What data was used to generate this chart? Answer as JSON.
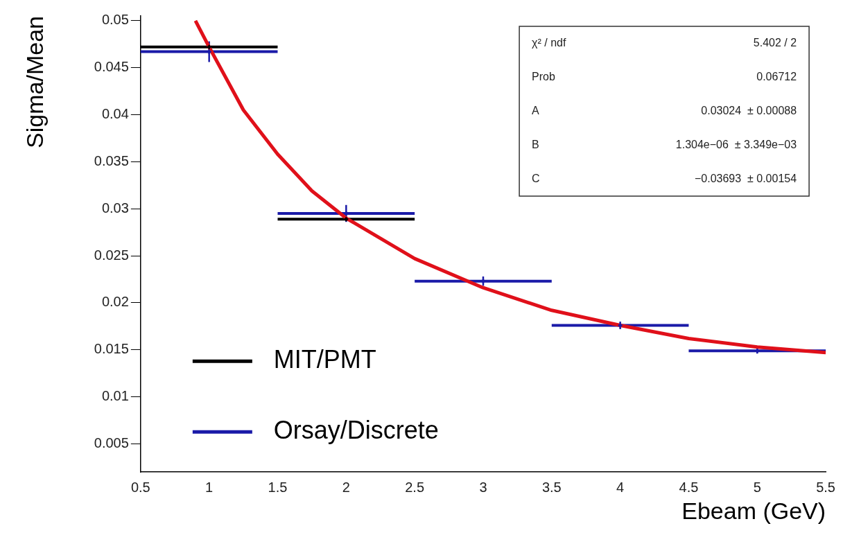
{
  "chart_data": {
    "type": "scatter",
    "xlabel": "Ebeam (GeV)",
    "ylabel": "Sigma/Mean",
    "x": [
      1,
      2,
      3,
      4,
      5
    ],
    "xlim": [
      0.5,
      5.5
    ],
    "xticks": [
      0.5,
      1,
      1.5,
      2,
      2.5,
      3,
      3.5,
      4,
      4.5,
      5,
      5.5
    ],
    "ylim": [
      0.002,
      0.0505
    ],
    "yticks": [
      0.005,
      0.01,
      0.015,
      0.02,
      0.025,
      0.03,
      0.035,
      0.04,
      0.045,
      0.05
    ],
    "grid": false,
    "legend": "bottom left",
    "marker": "cross",
    "series": [
      {
        "name": "MIT/PMT",
        "color": "#000000",
        "values": [
          0.0472,
          0.0289,
          null,
          null,
          null
        ],
        "xerrors": [
          0.5,
          0.5,
          null,
          null,
          null
        ]
      },
      {
        "name": "Orsay/Discrete",
        "color": "#1a1aa8",
        "values": [
          0.0467,
          0.0295,
          0.0223,
          0.0176,
          0.0149
        ],
        "xerrors": [
          0.5,
          0.5,
          0.5,
          0.5,
          0.5
        ],
        "errors": [
          0.0011,
          0.0009,
          0.0005,
          0.0004,
          0.0003
        ]
      },
      {
        "type": "line",
        "color": "#e0101a",
        "marker": "none",
        "x": [
          0.9,
          1,
          1.25,
          1.5,
          1.75,
          2,
          2.5,
          3,
          3.5,
          4,
          4.5,
          5,
          5.5
        ],
        "values": [
          0.05,
          0.0472,
          0.0405,
          0.0358,
          0.0319,
          0.029,
          0.0247,
          0.0216,
          0.0192,
          0.0176,
          0.0162,
          0.0153,
          0.0147
        ]
      }
    ],
    "annotations": [
      "χ² / ndf",
      "5.402 / 2",
      "Prob",
      "0.06712",
      "A",
      "0.03024  ± 0.00088",
      "B",
      "1.304e−06  ± 3.349e−03",
      "C",
      "−0.03693  ± 0.00154"
    ]
  }
}
